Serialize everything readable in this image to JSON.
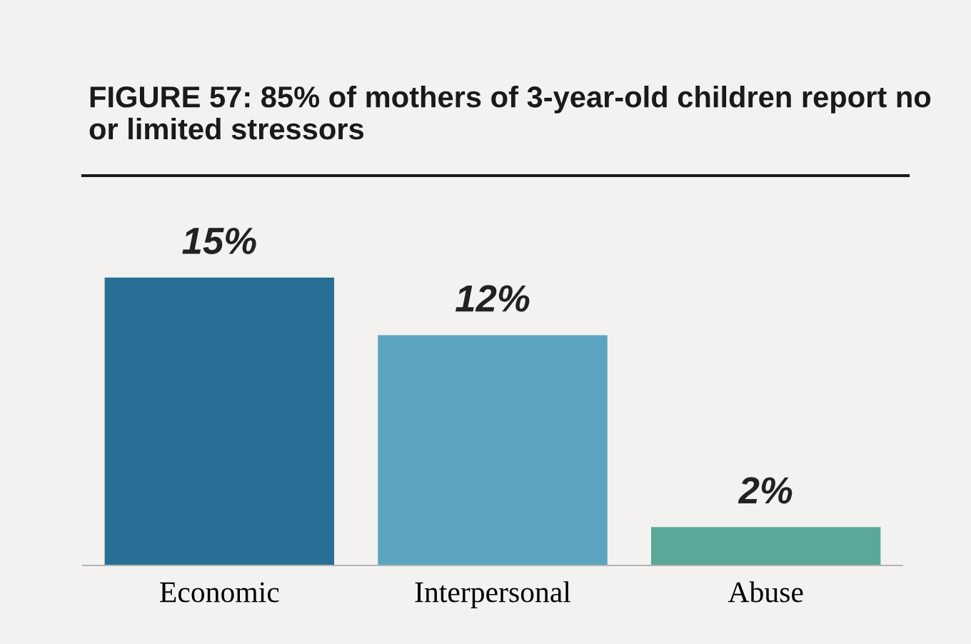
{
  "chart_data": {
    "type": "bar",
    "title": "FIGURE 57: 85% of mothers of 3-year-old children report no or limited stressors",
    "categories": [
      "Economic",
      "Interpersonal",
      "Abuse"
    ],
    "values": [
      15,
      12,
      2
    ],
    "colors": [
      "#276f94",
      "#5ba4bf",
      "#5aa899"
    ],
    "value_labels": [
      "15%",
      "12%",
      "2%"
    ],
    "grid": false,
    "legend": false
  }
}
